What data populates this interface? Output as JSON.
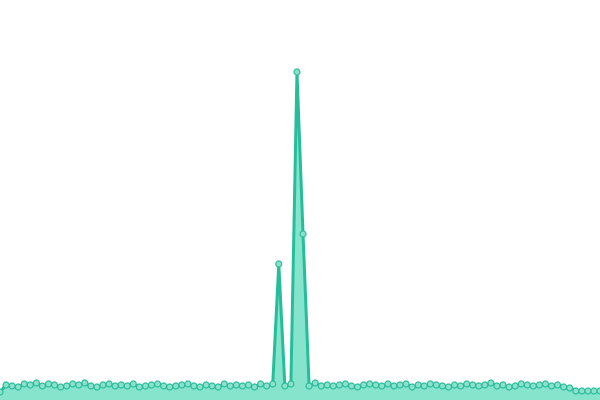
{
  "chart_data": {
    "type": "area",
    "series": [
      {
        "color": "#26bd9b",
        "fill": "#86e3cc",
        "marker_fill": "#8fe0cb",
        "values": [
          8,
          15,
          14,
          13,
          16,
          15,
          17,
          14,
          16,
          15,
          13,
          14,
          16,
          15,
          17,
          14,
          13,
          15,
          16,
          14,
          15,
          14,
          16,
          13,
          14,
          15,
          16,
          14,
          13,
          14,
          15,
          16,
          14,
          13,
          15,
          14,
          13,
          16,
          14,
          15,
          14,
          15,
          13,
          16,
          14,
          16,
          136,
          14,
          16,
          328,
          166,
          14,
          17,
          14,
          15,
          14,
          15,
          16,
          14,
          13,
          15,
          16,
          15,
          14,
          16,
          14,
          15,
          16,
          13,
          15,
          14,
          16,
          15,
          14,
          13,
          15,
          14,
          16,
          15,
          14,
          15,
          17,
          14,
          15,
          13,
          14,
          16,
          15,
          14,
          15,
          16,
          14,
          15,
          13,
          12,
          9,
          9,
          9,
          9,
          9
        ]
      }
    ],
    "ylim": [
      0,
      400
    ],
    "markers": true
  }
}
